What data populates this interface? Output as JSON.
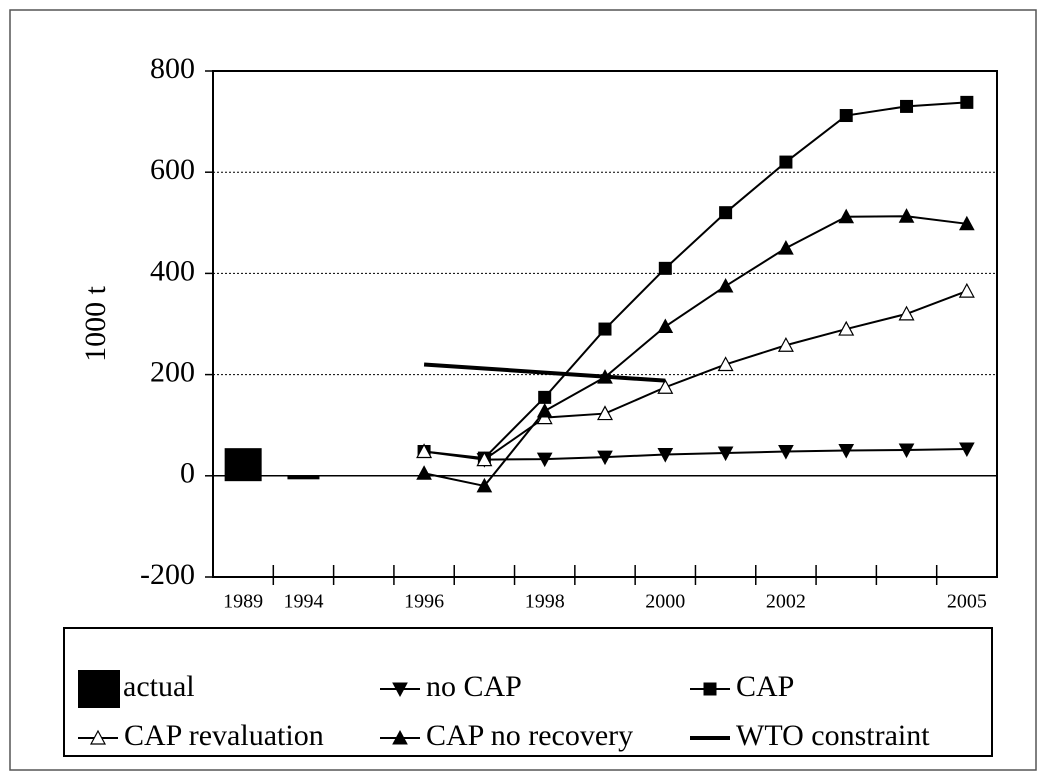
{
  "chart_data": {
    "type": "line",
    "y_label": "1000 t",
    "categories": [
      "1989",
      "1994",
      null,
      "1996",
      null,
      "1998",
      null,
      "2000",
      null,
      "2002",
      null,
      null,
      "2005"
    ],
    "ylim": [
      -200,
      800
    ],
    "yticks": [
      -200,
      0,
      200,
      400,
      600,
      800
    ],
    "grid": true,
    "series": [
      {
        "name": "actual",
        "color": "#000000",
        "marker": "square-big",
        "line": false,
        "values": [
          22,
          -3,
          null,
          null,
          null,
          null,
          null,
          null,
          null,
          null,
          null,
          null,
          null
        ]
      },
      {
        "name": "no CAP",
        "color": "#000000",
        "marker": "triangle-down",
        "line": true,
        "values": [
          null,
          null,
          null,
          null,
          32,
          33,
          37,
          42,
          45,
          48,
          50,
          51,
          53
        ]
      },
      {
        "name": "CAP",
        "color": "#000000",
        "marker": "square",
        "line": true,
        "values": [
          null,
          null,
          null,
          48,
          35,
          155,
          290,
          410,
          520,
          620,
          712,
          730,
          738
        ]
      },
      {
        "name": "CAP revaluation",
        "color": "#000000",
        "marker": "triangle-open",
        "line": true,
        "values": [
          null,
          null,
          null,
          48,
          32,
          115,
          123,
          175,
          220,
          258,
          290,
          320,
          365
        ]
      },
      {
        "name": "CAP no recovery",
        "color": "#000000",
        "marker": "triangle",
        "line": true,
        "values": [
          null,
          null,
          null,
          5,
          -20,
          128,
          195,
          295,
          375,
          450,
          512,
          513,
          498
        ]
      },
      {
        "name": "WTO constraint",
        "color": "#000000",
        "marker": "none",
        "line": true,
        "values": [
          null,
          null,
          null,
          220,
          212,
          204,
          196,
          188,
          null,
          null,
          null,
          null,
          null
        ]
      }
    ]
  }
}
